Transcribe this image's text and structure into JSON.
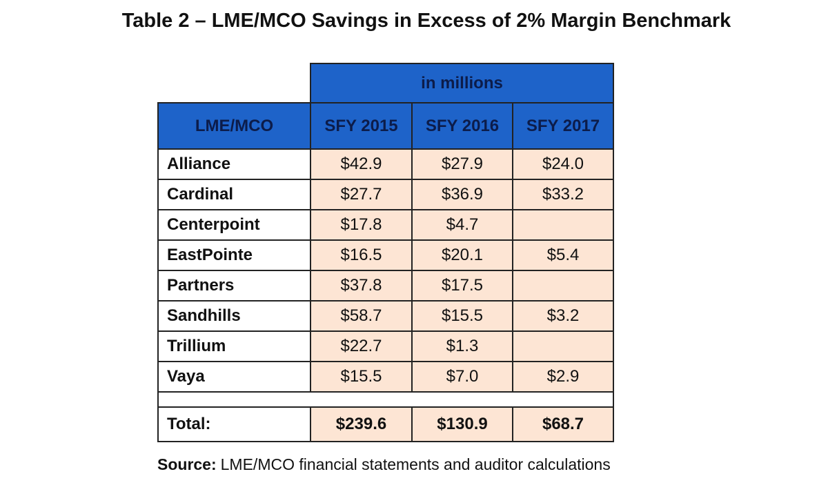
{
  "title": "Table 2 – LME/MCO Savings in Excess of 2% Margin Benchmark",
  "table": {
    "group_header": "in millions",
    "columns": [
      "LME/MCO",
      "SFY 2015",
      "SFY 2016",
      "SFY 2017"
    ],
    "rows": [
      [
        "Alliance",
        "$42.9",
        "$27.9",
        "$24.0"
      ],
      [
        "Cardinal",
        "$27.7",
        "$36.9",
        "$33.2"
      ],
      [
        "Centerpoint",
        "$17.8",
        "$4.7",
        null
      ],
      [
        "EastPointe",
        "$16.5",
        "$20.1",
        "$5.4"
      ],
      [
        "Partners",
        "$37.8",
        "$17.5",
        null
      ],
      [
        "Sandhills",
        "$58.7",
        "$15.5",
        "$3.2"
      ],
      [
        "Trillium",
        "$22.7",
        "$1.3",
        null
      ],
      [
        "Vaya",
        "$15.5",
        "$7.0",
        "$2.9"
      ]
    ],
    "total": [
      "Total:",
      "$239.6",
      "$130.9",
      "$68.7"
    ]
  },
  "source": {
    "label": "Source:",
    "text": "LME/MCO financial statements and auditor calculations"
  }
}
